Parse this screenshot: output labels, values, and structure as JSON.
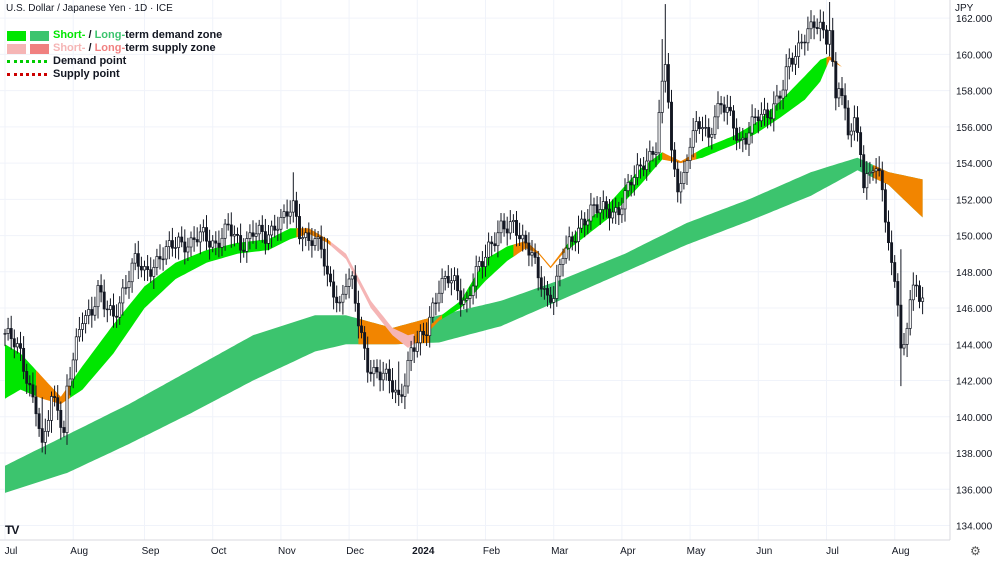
{
  "header": {
    "title": "U.S. Dollar / Japanese Yen · 1D · ICE",
    "unit": "JPY"
  },
  "legend": {
    "demand_short": "Short-",
    "demand_long": "Long-",
    "demand_rest": "term demand zone",
    "supply_short": "Short-",
    "supply_long": "Long-",
    "supply_rest": "term supply zone",
    "separator": " / ",
    "demand_point": "Demand point",
    "supply_point": "Supply point"
  },
  "colors": {
    "short_demand": "#00e600",
    "long_demand": "#3cc46e",
    "short_supply": "#f5b5b5",
    "long_supply": "#f08080",
    "overlap": "#f28500",
    "demand_point": "#00cc00",
    "supply_point": "#cc0000",
    "candle": "#131722"
  },
  "branding": {
    "logo": "TV",
    "settings_icon": "gear-icon"
  },
  "chart_data": {
    "type": "candlestick",
    "title": "U.S. Dollar / Japanese Yen · 1D · ICE",
    "y_unit": "JPY",
    "ylim": [
      133.2,
      163.0
    ],
    "y_ticks": [
      "162.000",
      "160.000",
      "158.000",
      "156.000",
      "154.000",
      "152.000",
      "150.000",
      "148.000",
      "146.000",
      "144.000",
      "142.000",
      "140.000",
      "138.000",
      "136.000",
      "134.000"
    ],
    "x_ticks": [
      "Jul",
      "Aug",
      "Sep",
      "Oct",
      "Nov",
      "Dec",
      "2024",
      "Feb",
      "Mar",
      "Apr",
      "May",
      "Jun",
      "Jul",
      "Aug"
    ],
    "x_tick_index": [
      0,
      22,
      45,
      67,
      89,
      111,
      133,
      155,
      177,
      199,
      221,
      243,
      265,
      287
    ],
    "close_anchors": [
      [
        0,
        144.6
      ],
      [
        5,
        143.5
      ],
      [
        10,
        140.5
      ],
      [
        12,
        138.0
      ],
      [
        15,
        141.0
      ],
      [
        17,
        140.8
      ],
      [
        19,
        139.0
      ],
      [
        20,
        141.5
      ],
      [
        22,
        143.0
      ],
      [
        25,
        145.5
      ],
      [
        28,
        146.0
      ],
      [
        30,
        147.0
      ],
      [
        32,
        146.0
      ],
      [
        35,
        145.5
      ],
      [
        38,
        147.0
      ],
      [
        42,
        148.5
      ],
      [
        45,
        148.0
      ],
      [
        48,
        148.5
      ],
      [
        52,
        149.0
      ],
      [
        56,
        149.8
      ],
      [
        60,
        149.5
      ],
      [
        64,
        150.0
      ],
      [
        68,
        149.6
      ],
      [
        72,
        150.3
      ],
      [
        76,
        149.5
      ],
      [
        80,
        150.2
      ],
      [
        84,
        149.8
      ],
      [
        88,
        150.9
      ],
      [
        90,
        151.0
      ],
      [
        93,
        151.4
      ],
      [
        95,
        150.2
      ],
      [
        99,
        149.9
      ],
      [
        102,
        149.2
      ],
      [
        104,
        147.5
      ],
      [
        106,
        147.1
      ],
      [
        108,
        146.2
      ],
      [
        110,
        147.5
      ],
      [
        112,
        147.2
      ],
      [
        114,
        145.2
      ],
      [
        117,
        143.0
      ],
      [
        119,
        142.5
      ],
      [
        121,
        142.2
      ],
      [
        124,
        142.0
      ],
      [
        127,
        141.2
      ],
      [
        129,
        142.0
      ],
      [
        131,
        143.5
      ],
      [
        133,
        143.9
      ],
      [
        136,
        145.0
      ],
      [
        138,
        146.2
      ],
      [
        140,
        147.0
      ],
      [
        143,
        147.5
      ],
      [
        145,
        147.5
      ],
      [
        147,
        146.8
      ],
      [
        149,
        146.3
      ],
      [
        152,
        147.8
      ],
      [
        154,
        148.5
      ],
      [
        156,
        149.5
      ],
      [
        158,
        150.0
      ],
      [
        160,
        150.4
      ],
      [
        162,
        150.2
      ],
      [
        164,
        150.5
      ],
      [
        166,
        150.2
      ],
      [
        168,
        149.7
      ],
      [
        170,
        149.0
      ],
      [
        172,
        147.5
      ],
      [
        175,
        146.5
      ],
      [
        177,
        147.0
      ],
      [
        180,
        149.0
      ],
      [
        183,
        149.5
      ],
      [
        186,
        150.8
      ],
      [
        189,
        151.5
      ],
      [
        192,
        151.3
      ],
      [
        195,
        151.4
      ],
      [
        198,
        151.5
      ],
      [
        201,
        152.5
      ],
      [
        204,
        153.5
      ],
      [
        206,
        154.2
      ],
      [
        208,
        154.5
      ],
      [
        210,
        154.8
      ],
      [
        212,
        158.0
      ],
      [
        213,
        159.5
      ],
      [
        214,
        157.5
      ],
      [
        215,
        154.5
      ],
      [
        217,
        153.0
      ],
      [
        219,
        153.2
      ],
      [
        221,
        155.0
      ],
      [
        223,
        155.8
      ],
      [
        225,
        156.3
      ],
      [
        227,
        155.5
      ],
      [
        229,
        156.7
      ],
      [
        231,
        157.0
      ],
      [
        233,
        156.8
      ],
      [
        235,
        156.2
      ],
      [
        237,
        155.3
      ],
      [
        239,
        155.4
      ],
      [
        241,
        156.0
      ],
      [
        243,
        156.5
      ],
      [
        245,
        156.7
      ],
      [
        247,
        157.0
      ],
      [
        249,
        157.5
      ],
      [
        251,
        158.0
      ],
      [
        253,
        159.5
      ],
      [
        255,
        160.0
      ],
      [
        257,
        161.0
      ],
      [
        259,
        161.3
      ],
      [
        261,
        161.5
      ],
      [
        263,
        161.3
      ],
      [
        265,
        161.0
      ],
      [
        266,
        161.6
      ],
      [
        267,
        159.5
      ],
      [
        268,
        157.8
      ],
      [
        269,
        158.5
      ],
      [
        270,
        157.5
      ],
      [
        272,
        155.5
      ],
      [
        274,
        156.2
      ],
      [
        276,
        155.0
      ],
      [
        277,
        153.0
      ],
      [
        279,
        153.5
      ],
      [
        280,
        153.8
      ],
      [
        282,
        153.0
      ],
      [
        283,
        152.5
      ],
      [
        285,
        149.5
      ],
      [
        286,
        148.5
      ],
      [
        287,
        148.0
      ],
      [
        288,
        146.5
      ],
      [
        289,
        143.5
      ],
      [
        290,
        143.8
      ],
      [
        292,
        146.2
      ],
      [
        294,
        147.3
      ],
      [
        295,
        146.8
      ],
      [
        296,
        146.6
      ]
    ],
    "series": [
      {
        "name": "Short-term demand zone",
        "color": "#00e600"
      },
      {
        "name": "Long-term demand zone",
        "color": "#3cc46e"
      },
      {
        "name": "Short-term supply zone",
        "color": "#f5b5b5"
      },
      {
        "name": "Long-term supply zone",
        "color": "#f08080"
      }
    ],
    "long_zone_anchors": [
      [
        0,
        135.8,
        137.3
      ],
      [
        20,
        136.9,
        139.0
      ],
      [
        40,
        138.5,
        140.7
      ],
      [
        60,
        140.2,
        142.6
      ],
      [
        80,
        142.0,
        144.5
      ],
      [
        100,
        143.6,
        145.6
      ],
      [
        110,
        144.0,
        145.6
      ],
      [
        125,
        144.0,
        144.9
      ],
      [
        140,
        144.1,
        145.6
      ],
      [
        160,
        145.0,
        146.4
      ],
      [
        180,
        146.5,
        147.6
      ],
      [
        200,
        148.0,
        149.0
      ],
      [
        220,
        149.5,
        150.7
      ],
      [
        240,
        150.8,
        152.0
      ],
      [
        260,
        152.2,
        153.5
      ],
      [
        275,
        153.6,
        154.3
      ],
      [
        285,
        152.8,
        153.5
      ],
      [
        296,
        151.0,
        153.1
      ]
    ],
    "short_zone_anchors": [
      [
        0,
        141.0,
        144.0
      ],
      [
        5,
        141.5,
        143.5
      ],
      [
        12,
        141.0,
        142.2
      ],
      [
        18,
        140.7,
        141.1
      ],
      [
        25,
        141.5,
        142.8
      ],
      [
        35,
        143.5,
        145.1
      ],
      [
        45,
        146.0,
        147.2
      ],
      [
        55,
        147.6,
        148.5
      ],
      [
        65,
        148.5,
        149.2
      ],
      [
        75,
        149.0,
        149.6
      ],
      [
        85,
        149.2,
        149.8
      ],
      [
        92,
        149.8,
        150.4
      ],
      [
        98,
        150.1,
        150.4
      ],
      [
        104,
        149.6,
        149.8
      ],
      [
        110,
        148.7,
        149.0
      ],
      [
        118,
        146.0,
        146.4
      ],
      [
        125,
        144.5,
        144.9
      ],
      [
        130,
        143.8,
        144.5
      ],
      [
        135,
        144.4,
        144.7
      ],
      [
        140,
        145.3,
        145.5
      ],
      [
        147,
        146.0,
        146.4
      ],
      [
        155,
        147.5,
        148.7
      ],
      [
        162,
        148.6,
        149.4
      ],
      [
        168,
        149.3,
        149.7
      ],
      [
        172,
        149.0,
        149.1
      ],
      [
        176,
        148.2,
        148.3
      ],
      [
        180,
        149.0,
        149.2
      ],
      [
        186,
        149.8,
        150.6
      ],
      [
        195,
        151.0,
        151.8
      ],
      [
        205,
        152.8,
        153.7
      ],
      [
        212,
        154.2,
        154.6
      ],
      [
        218,
        154.0,
        154.1
      ],
      [
        225,
        154.3,
        154.8
      ],
      [
        235,
        155.0,
        155.5
      ],
      [
        242,
        155.6,
        156.2
      ],
      [
        250,
        156.5,
        157.4
      ],
      [
        258,
        157.5,
        158.8
      ],
      [
        263,
        158.5,
        159.7
      ],
      [
        266,
        159.7,
        159.9
      ],
      [
        270,
        159.3,
        159.3
      ],
      [
        276,
        158.3,
        158.3
      ],
      [
        282,
        156.5,
        156.5
      ],
      [
        288,
        154.8,
        154.8
      ],
      [
        296,
        153.2,
        153.2
      ]
    ]
  }
}
